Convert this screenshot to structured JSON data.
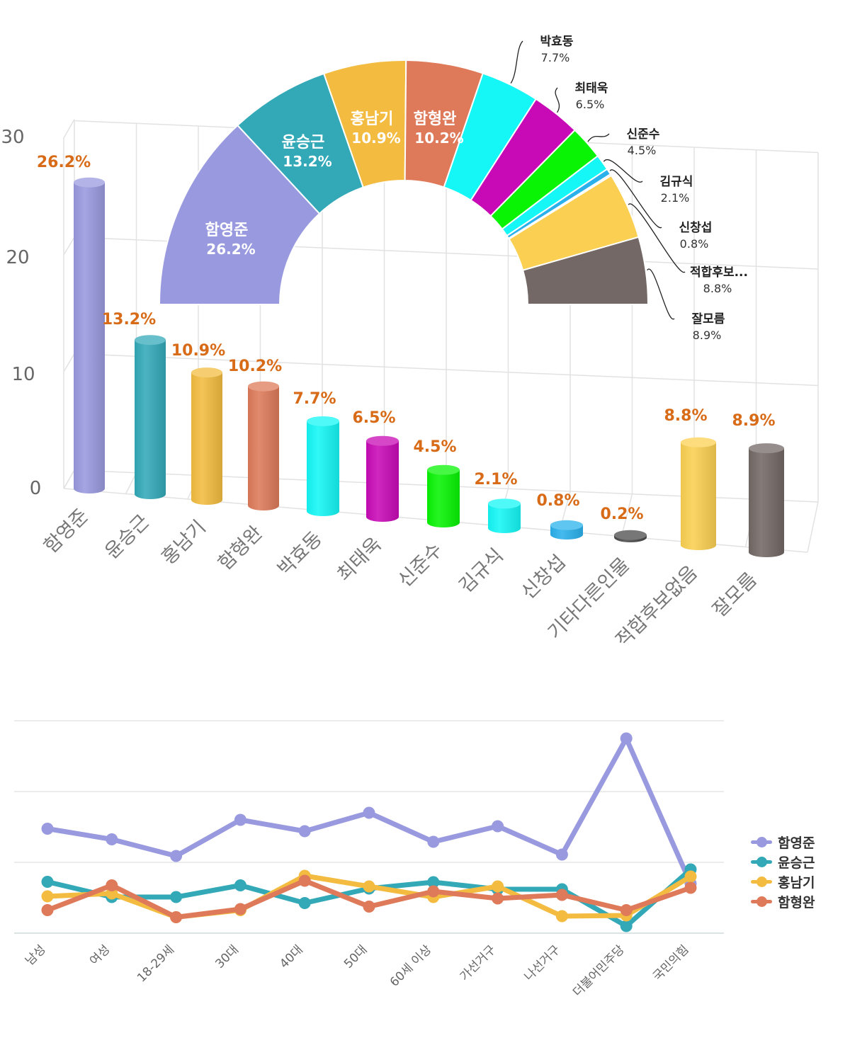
{
  "colors": {
    "함영준": "#9999df",
    "윤승근": "#33a9b8",
    "홍남기": "#f3bc40",
    "함형완": "#de7a59",
    "박효동": "#14f7f6",
    "최태욱": "#c80ab6",
    "신준수": "#08f404",
    "김규식": "#14f7f6",
    "신창섭": "#2ab1ec",
    "기타다른인물": "#4a4a4a",
    "적합후보없음": "#fbd052",
    "잘모름": "#736865",
    "value_label": "#d86b18"
  },
  "chart_data": [
    {
      "type": "bar",
      "categories": [
        "함영준",
        "윤승근",
        "홍남기",
        "함형완",
        "박효동",
        "최태욱",
        "신준수",
        "김규식",
        "신창섭",
        "기타다른인물",
        "적합후보없음",
        "잘모름"
      ],
      "values": [
        26.2,
        13.2,
        10.9,
        10.2,
        7.7,
        6.5,
        4.5,
        2.1,
        0.8,
        0.2,
        8.8,
        8.9
      ],
      "value_labels": [
        "26.2%",
        "13.2%",
        "10.9%",
        "10.2%",
        "7.7%",
        "6.5%",
        "4.5%",
        "2.1%",
        "0.8%",
        "0.2%",
        "8.8%",
        "8.9%"
      ],
      "yticks": [
        "0",
        "10",
        "20",
        "30"
      ],
      "ylim": [
        0,
        30
      ],
      "grid": true,
      "style": "3d-cylinder"
    },
    {
      "type": "pie",
      "style": "half-donut",
      "labels": [
        "함영준",
        "윤승근",
        "홍남기",
        "함형완",
        "박효동",
        "최태욱",
        "신준수",
        "김규식",
        "신창섭",
        "기타다른인물",
        "적합후보없음",
        "잘모름"
      ],
      "values": [
        26.2,
        13.2,
        10.9,
        10.2,
        7.7,
        6.5,
        4.5,
        2.1,
        0.8,
        0.2,
        8.8,
        8.9
      ],
      "inside_labels": [
        {
          "name": "함영준",
          "pct": "26.2%"
        },
        {
          "name": "윤승근",
          "pct": "13.2%"
        },
        {
          "name": "홍남기",
          "pct": "10.9%"
        },
        {
          "name": "함형완",
          "pct": "10.2%"
        }
      ],
      "outside_labels": [
        {
          "name": "박효동",
          "pct": "7.7%"
        },
        {
          "name": "최태욱",
          "pct": "6.5%"
        },
        {
          "name": "신준수",
          "pct": "4.5%"
        },
        {
          "name": "김규식",
          "pct": "2.1%"
        },
        {
          "name": "신창섭",
          "pct": "0.8%"
        },
        {
          "name": "적합후보...",
          "pct": "8.8%"
        },
        {
          "name": "잘모름",
          "pct": "8.9%"
        }
      ]
    },
    {
      "type": "line",
      "categories": [
        "남성",
        "여성",
        "18-29세",
        "30대",
        "40대",
        "50대",
        "60세 이상",
        "가선거구",
        "나선거구",
        "더불어민주당",
        "국민의힘"
      ],
      "series": [
        {
          "name": "함영준",
          "values": [
            29.5,
            26.5,
            21.8,
            32.0,
            28.8,
            34.0,
            25.8,
            30.2,
            22.2,
            55.0,
            14.0
          ]
        },
        {
          "name": "윤승근",
          "values": [
            14.5,
            10.2,
            10.2,
            13.5,
            8.5,
            12.6,
            14.4,
            12.4,
            12.4,
            2.0,
            18.0
          ]
        },
        {
          "name": "홍남기",
          "values": [
            10.4,
            11.2,
            4.5,
            6.5,
            16.2,
            13.2,
            10.2,
            13.2,
            4.8,
            5.0,
            16.0
          ]
        },
        {
          "name": "함형완",
          "values": [
            6.5,
            13.5,
            4.5,
            6.8,
            14.8,
            7.5,
            11.8,
            9.8,
            10.8,
            6.5,
            12.8
          ]
        }
      ],
      "ylim": [
        0,
        60
      ],
      "grid": true,
      "legend": "right"
    }
  ]
}
